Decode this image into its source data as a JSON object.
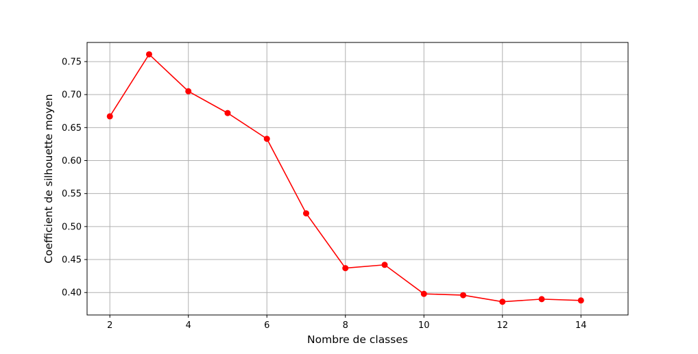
{
  "chart_data": {
    "type": "line",
    "title": "",
    "xlabel": "Nombre de classes",
    "ylabel": "Coefficient de silhouette moyen",
    "x": [
      2,
      3,
      4,
      5,
      6,
      7,
      8,
      9,
      10,
      11,
      12,
      13,
      14
    ],
    "series": [
      {
        "values": [
          0.667,
          0.761,
          0.705,
          0.672,
          0.633,
          0.52,
          0.437,
          0.442,
          0.398,
          0.396,
          0.386,
          0.39,
          0.388
        ],
        "color": "#ff0000",
        "marker": "circle"
      }
    ],
    "xlim": [
      1.42,
      15.2
    ],
    "ylim": [
      0.366,
      0.779
    ],
    "xticks": [
      2,
      4,
      6,
      8,
      10,
      12,
      14
    ],
    "yticks": [
      0.4,
      0.45,
      0.5,
      0.55,
      0.6,
      0.65,
      0.7,
      0.75
    ],
    "xtick_labels": [
      "2",
      "4",
      "6",
      "8",
      "10",
      "12",
      "14"
    ],
    "ytick_labels": [
      "0.40",
      "0.45",
      "0.50",
      "0.55",
      "0.60",
      "0.65",
      "0.70",
      "0.75"
    ],
    "grid": true,
    "legend": false
  }
}
